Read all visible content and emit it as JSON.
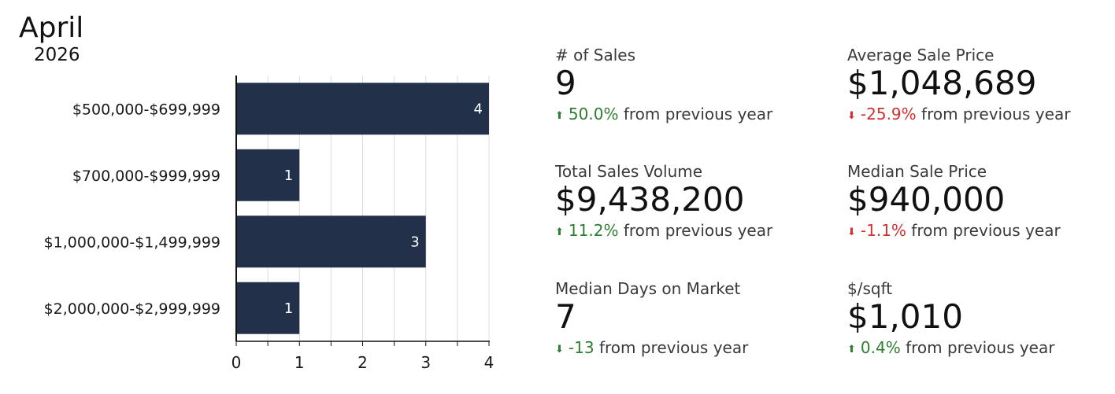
{
  "header": {
    "month": "April",
    "year": "2026"
  },
  "chart_data": {
    "type": "bar",
    "orientation": "horizontal",
    "categories": [
      "$500,000-$699,999",
      "$700,000-$999,999",
      "$1,000,000-$1,499,999",
      "$2,000,000-$2,999,999"
    ],
    "values": [
      4,
      1,
      3,
      1
    ],
    "data_labels": [
      "4",
      "1",
      "3",
      "1"
    ],
    "xlim": [
      0,
      4
    ],
    "x_ticks": [
      "0",
      "1",
      "2",
      "3",
      "4"
    ],
    "bar_color": "#22304a",
    "grid": true
  },
  "stats": [
    {
      "label": "# of Sales",
      "value": "9",
      "change": "50.0%",
      "direction": "up",
      "tone": "positive",
      "suffix": "from previous year"
    },
    {
      "label": "Average Sale Price",
      "value": "$1,048,689",
      "change": "-25.9%",
      "direction": "down",
      "tone": "negative",
      "suffix": "from previous year"
    },
    {
      "label": "Total Sales Volume",
      "value": "$9,438,200",
      "change": "11.2%",
      "direction": "up",
      "tone": "positive",
      "suffix": "from previous year"
    },
    {
      "label": "Median Sale Price",
      "value": "$940,000",
      "change": "-1.1%",
      "direction": "down",
      "tone": "negative",
      "suffix": "from previous year"
    },
    {
      "label": "Median Days on Market",
      "value": "7",
      "change": "-13",
      "direction": "down",
      "tone": "positive",
      "suffix": "from previous year"
    },
    {
      "label": "$/sqft",
      "value": "$1,010",
      "change": "0.4%",
      "direction": "up",
      "tone": "positive",
      "suffix": "from previous year"
    }
  ],
  "colors": {
    "positive": "#2e7d32",
    "negative": "#d32f2f"
  }
}
